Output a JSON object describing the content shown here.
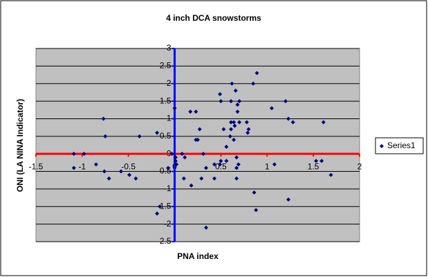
{
  "chart_data": {
    "type": "scatter",
    "title": "4 inch DCA snowstorms",
    "x_label": "PNA index",
    "y_label": "ONI (LA NINA Indicator)",
    "xlim": [
      -1.5,
      2
    ],
    "xticks": [
      -1.5,
      -1,
      -0.5,
      0,
      0.5,
      1,
      1.5,
      2
    ],
    "ylim": [
      -2.5,
      3
    ],
    "yticks": [
      -2.5,
      -2,
      -1.5,
      -1,
      -0.5,
      0,
      0.5,
      1,
      1.5,
      2,
      2.5,
      3
    ],
    "grid": true,
    "legend": "right",
    "background": "#c0c0c0",
    "x_axis_color": "#ff0000",
    "y_axis_color": "#0000ff",
    "series": [
      {
        "name": "Series1",
        "color": "#000080",
        "x": [
          -1.09,
          -1.09,
          -0.98,
          -0.85,
          -0.77,
          -0.75,
          -0.76,
          -0.71,
          -0.58,
          -0.49,
          -0.42,
          -0.38,
          -0.19,
          -0.19,
          -0.16,
          -0.07,
          -0.03,
          0,
          0.01,
          0.01,
          0.02,
          0.08,
          0.1,
          0.11,
          0.17,
          0.18,
          0.23,
          0.23,
          0.25,
          0.27,
          0.29,
          0.31,
          0.34,
          0.34,
          0.43,
          0.43,
          0.49,
          0.49,
          0.5,
          0.5,
          0.53,
          0.56,
          0.56,
          0.6,
          0.61,
          0.61,
          0.61,
          0.62,
          0.64,
          0.64,
          0.65,
          0.66,
          0.67,
          0.67,
          0.67,
          0.68,
          0.68,
          0.69,
          0.7,
          0.7,
          0.78,
          0.79,
          0.8,
          0.85,
          0.86,
          0.88,
          0.89,
          1.05,
          1.08,
          1.2,
          1.23,
          1.23,
          1.28,
          1.53,
          1.59,
          1.61,
          1.69
        ],
        "values": [
          0,
          -0.4,
          0,
          -0.3,
          1,
          0.5,
          -0.5,
          -0.7,
          -0.5,
          -0.6,
          -0.7,
          0.5,
          0.6,
          -1.7,
          -1.5,
          -0.4,
          0,
          1.3,
          -0.1,
          -0.2,
          -0.3,
          0,
          -0.7,
          -0.1,
          1.2,
          -0.9,
          1.2,
          0.4,
          0.4,
          0.7,
          -0.7,
          0,
          -0.4,
          -2.1,
          -0.7,
          -0.3,
          -0.3,
          1.7,
          1.5,
          -0.2,
          0.7,
          0.2,
          -0.2,
          0.5,
          0.7,
          1.5,
          0.9,
          2,
          0.4,
          0.9,
          0.8,
          1.8,
          -0.1,
          -0.7,
          -0.4,
          1.2,
          1.4,
          -0.3,
          1.5,
          0.9,
          0.9,
          0.6,
          0.7,
          2,
          -1.1,
          -1.6,
          2.3,
          1.3,
          -0.3,
          1.5,
          1,
          -1.3,
          0.9,
          -0.2,
          -0.2,
          0.9,
          -0.6
        ]
      }
    ]
  }
}
